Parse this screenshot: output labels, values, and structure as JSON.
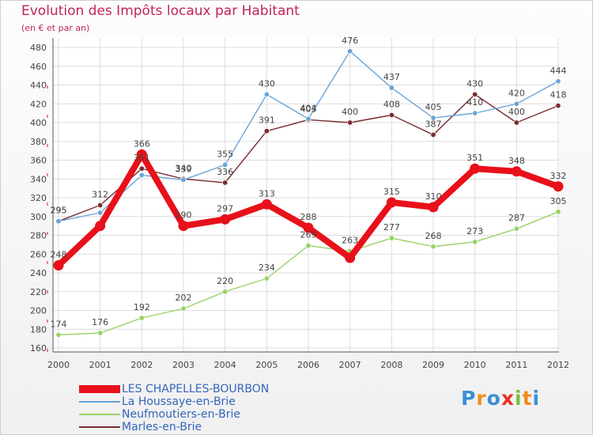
{
  "header": {
    "title": "Evolution des Impôts locaux par Habitant",
    "subtitle": "(en € et par an)"
  },
  "logo": {
    "letters": [
      "P",
      "r",
      "o",
      "x",
      "i",
      "t",
      "i"
    ],
    "colors": [
      "#3a8fd4",
      "#f28c1e",
      "#3a8fd4",
      "#e8321e",
      "#7bc043",
      "#f28c1e",
      "#3a8fd4"
    ]
  },
  "chart_data": {
    "type": "line",
    "title": "Evolution des Impôts locaux par Habitant",
    "subtitle": "(en € et par an)",
    "xlabel": "",
    "ylabel": "",
    "x": [
      "2000",
      "2001",
      "2002",
      "2003",
      "2004",
      "2005",
      "2006",
      "2007",
      "2008",
      "2009",
      "2010",
      "2011",
      "2012"
    ],
    "ylim": [
      160,
      480
    ],
    "yticks": [
      160,
      180,
      200,
      220,
      240,
      260,
      280,
      300,
      320,
      340,
      360,
      380,
      400,
      420,
      440,
      460,
      480
    ],
    "grid": true,
    "legend_position": "bottom-left",
    "series": [
      {
        "name": "LES CHAPELLES-BOURBON",
        "color": "#e8101a",
        "thick": true,
        "values": [
          248,
          290,
          366,
          290,
          297,
          313,
          288,
          256,
          315,
          310,
          351,
          348,
          332
        ],
        "labels": [
          "248",
          "",
          "366",
          "290",
          "297",
          "313",
          "288",
          "",
          "315",
          "310",
          "351",
          "348",
          "332"
        ]
      },
      {
        "name": "La Houssaye-en-Brie",
        "color": "#6aa4d8",
        "thick": false,
        "values": [
          295,
          304,
          344,
          339,
          355,
          430,
          404,
          476,
          437,
          405,
          410,
          420,
          444
        ],
        "labels": [
          "295",
          "",
          "",
          "339",
          "355",
          "430",
          "404",
          "476",
          "437",
          "405",
          "410",
          "420",
          "444"
        ]
      },
      {
        "name": "Neufmoutiers-en-Brie",
        "color": "#99d266",
        "thick": false,
        "values": [
          174,
          176,
          192,
          202,
          220,
          234,
          269,
          263,
          277,
          268,
          273,
          287,
          305
        ],
        "labels": [
          "174",
          "176",
          "192",
          "202",
          "220",
          "234",
          "269",
          "263",
          "277",
          "268",
          "273",
          "287",
          "305"
        ]
      },
      {
        "name": "Marles-en-Brie",
        "color": "#7a2c30",
        "thick": false,
        "values": [
          295,
          312,
          351,
          340,
          336,
          391,
          403,
          400,
          408,
          387,
          430,
          400,
          418
        ],
        "labels": [
          "295",
          "312",
          "351",
          "340",
          "336",
          "391",
          "403",
          "400",
          "408",
          "387",
          "430",
          "400",
          "418"
        ]
      }
    ]
  }
}
